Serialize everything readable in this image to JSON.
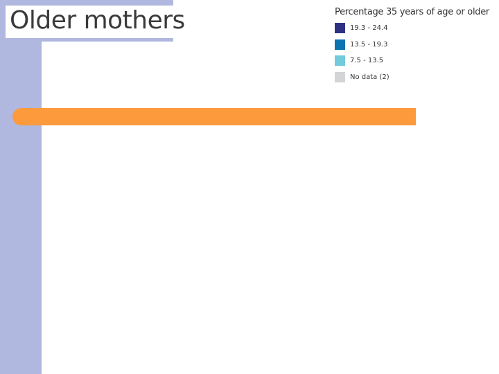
{
  "title": "Older mothers",
  "legend": {
    "title": "Percentage 35 years of age or older",
    "items": [
      {
        "label": "19.3 - 24.4",
        "color": "#2e3182"
      },
      {
        "label": "13.5 - 19.3",
        "color": "#0b73b2"
      },
      {
        "label": "7.5 - 13.5",
        "color": "#72cadb"
      },
      {
        "label": "No data (2)",
        "color": "#d3d4d6"
      }
    ]
  }
}
